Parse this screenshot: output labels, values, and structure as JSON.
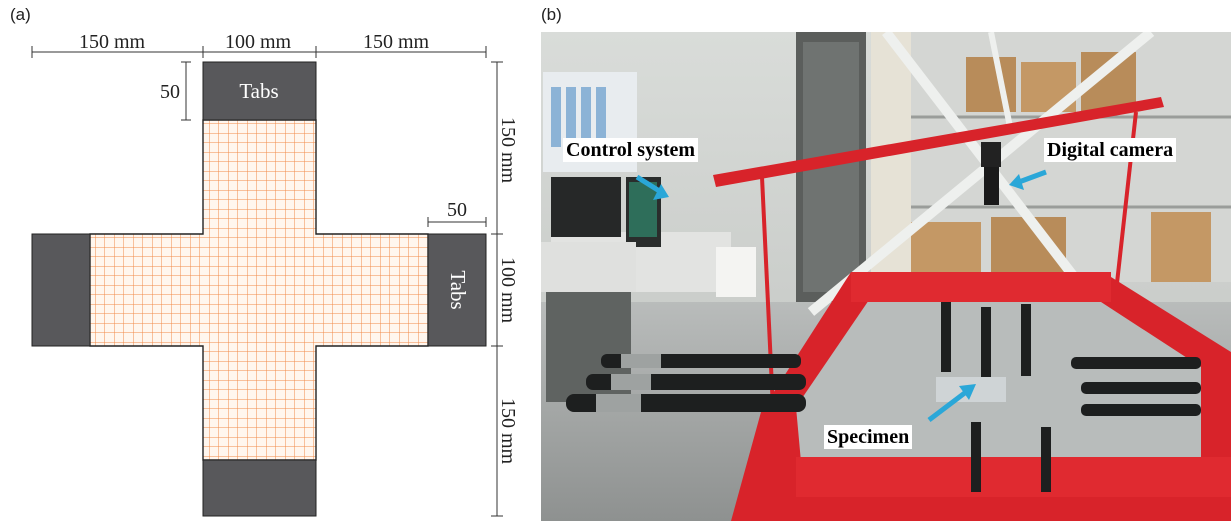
{
  "panel_a": {
    "label": "(a)",
    "dimensions": {
      "top_left": "150 mm",
      "top_center": "100 mm",
      "top_right": "150 mm",
      "tab_height": "50",
      "tab_width": "50",
      "right_upper": "150 mm",
      "right_middle": "100 mm",
      "right_lower": "150 mm"
    },
    "tab_label_top": "Tabs",
    "tab_label_right": "Tabs",
    "colors": {
      "tab": "#58585b",
      "grid": "#f08a48",
      "specimen_fill": "#fff6ee",
      "outline": "#222222"
    }
  },
  "panel_b": {
    "label": "(b)",
    "callouts": {
      "control_system": "Control system",
      "digital_camera": "Digital camera",
      "specimen": "Specimen"
    },
    "colors": {
      "frame_red": "#d8232a",
      "arrow": "#2aa7d8"
    }
  }
}
